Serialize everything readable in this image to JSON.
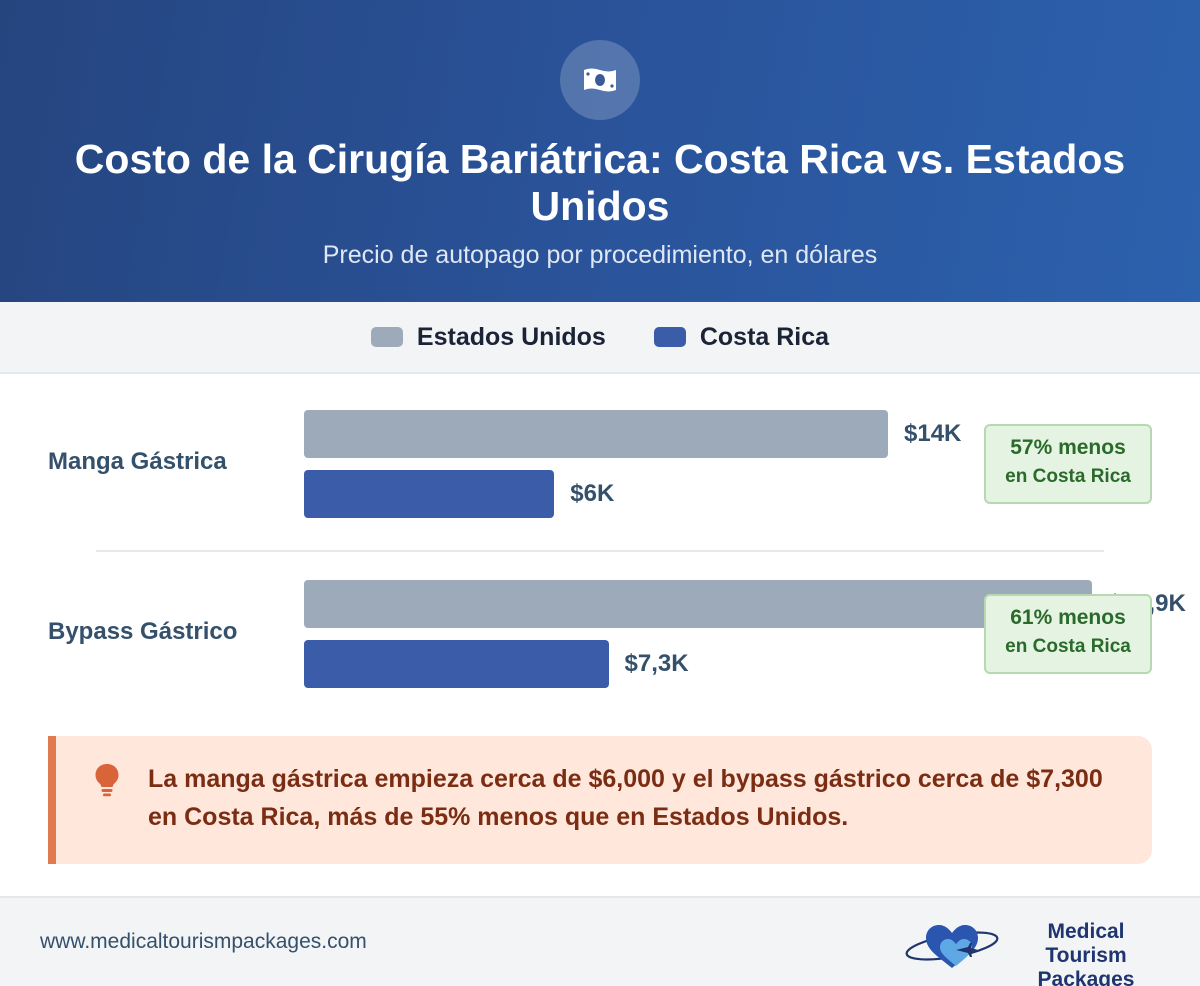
{
  "header": {
    "icon": "money-bill-icon",
    "title": "Costo de la Cirugía Bariátrica: Costa Rica vs. Estados Unidos",
    "subtitle": "Precio de autopago por procedimiento, en dólares"
  },
  "legend": [
    {
      "label": "Estados Unidos",
      "color": "#9caab9"
    },
    {
      "label": "Costa Rica",
      "color": "#3b5ca8"
    }
  ],
  "chart_data": {
    "type": "bar",
    "orientation": "horizontal",
    "categories": [
      "Manga Gástrica",
      "Bypass Gástrico"
    ],
    "series": [
      {
        "name": "Estados Unidos",
        "values": [
          14000,
          18900
        ],
        "labels": [
          "$14K",
          "$18,9K"
        ],
        "color": "#9caab9"
      },
      {
        "name": "Costa Rica",
        "values": [
          6000,
          7300
        ],
        "labels": [
          "$6K",
          "$7,3K"
        ],
        "color": "#3b5ca8"
      }
    ],
    "savings": [
      {
        "line1": "57% menos",
        "line2": "en Costa Rica"
      },
      {
        "line1": "61% menos",
        "line2": "en Costa Rica"
      }
    ],
    "legend_position": "top-center",
    "grid": false
  },
  "insight": {
    "icon": "lightbulb-icon",
    "text": "La manga gástrica empieza cerca de $6,000 y el bypass gástrico cerca de $7,300 en Costa Rica, más de 55% menos que en Estados Unidos."
  },
  "footer": {
    "url": "www.medicaltourismpackages.com",
    "brand_line1": "Medical Tourism",
    "brand_line2": "Packages",
    "logo_icon": "heart-airplane-logo-icon"
  }
}
